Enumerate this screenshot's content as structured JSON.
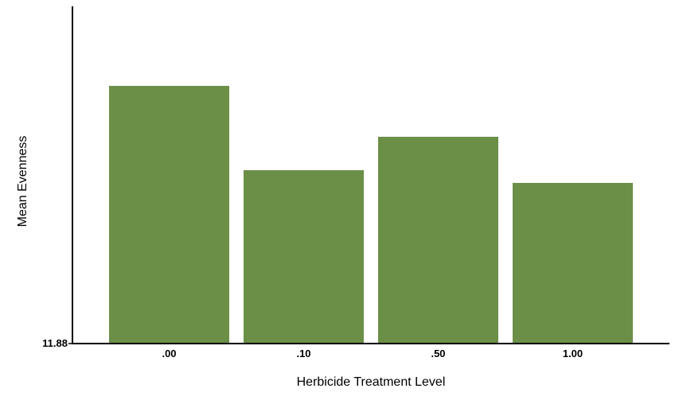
{
  "chart_data": {
    "type": "bar",
    "title": "",
    "xlabel": "Herbicide Treatment Level",
    "ylabel": "Mean Evenness",
    "categories": [
      ".00",
      ".10",
      ".50",
      "1.00"
    ],
    "values": [
      15.12,
      14.06,
      14.48,
      13.9
    ],
    "y_tick_labels": [
      "11.88"
    ],
    "ylim": [
      11.88,
      16.12
    ],
    "grid": false,
    "legend": "none",
    "bar_color": "#6b8f47"
  }
}
